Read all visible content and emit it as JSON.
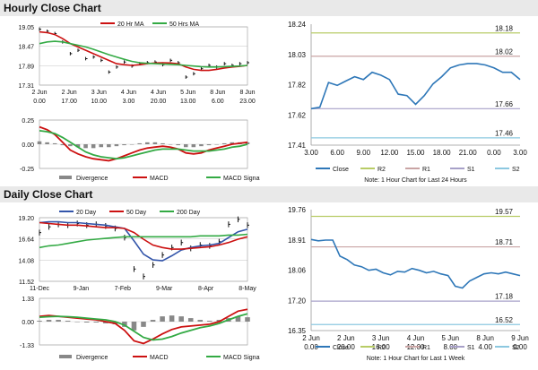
{
  "hourly": {
    "title": "Hourly Close Chart",
    "note": "Note: 1 Hour Chart for Last 24 Hours",
    "price_legend": [
      "20 Hr MA",
      "50 Hrs MA"
    ],
    "macd_legend": [
      "Divergence",
      "MACD",
      "MACD Signal Line"
    ],
    "pivot_legend": [
      "Close",
      "R2",
      "R1",
      "S1",
      "S2"
    ]
  },
  "daily": {
    "title": "Daily Close Chart",
    "note": "Note: 1 Hour Chart for Last 1 Week",
    "price_legend": [
      "20 Day",
      "50 Day",
      "200 Day"
    ],
    "macd_legend": [
      "Divergence",
      "MACD",
      "MACD Signal Line"
    ],
    "pivot_legend": [
      "Close",
      "R2",
      "R1",
      "S1",
      "S2"
    ]
  },
  "colors": {
    "price": "#111111",
    "ma_short": "#cc1111",
    "ma_mid": "#33aa44",
    "ma_long": "#3355aa",
    "close": "#2e77b8",
    "r2": "#b8cc66",
    "r1": "#c9a4a4",
    "s1": "#a7a0c8",
    "s2": "#8cc8e0",
    "divergence": "#888888",
    "grid": "#cfcfcf"
  },
  "chart_data": [
    {
      "id": "hourly_price",
      "type": "line",
      "title": "Hourly Close Chart",
      "ylim": [
        17.31,
        19.05
      ],
      "yticks": [
        "19.05",
        "18.47",
        "17.89",
        "17.31"
      ],
      "xticks": [
        "2 Jun\n0.00",
        "2 Jun\n17.00",
        "3 Jun\n10.00",
        "4 Jun\n3.00",
        "4 Jun\n20.00",
        "5 Jun\n13.00",
        "8 Jun\n6.00",
        "8 Jun\n23.00"
      ],
      "series": [
        {
          "name": "Close",
          "values": [
            18.98,
            18.92,
            18.85,
            18.6,
            18.25,
            18.35,
            18.1,
            18.15,
            18.05,
            17.7,
            17.85,
            18.0,
            17.88,
            17.95,
            17.98,
            18.0,
            17.92,
            18.05,
            17.98,
            17.55,
            17.65,
            17.8,
            17.9,
            17.85,
            17.95,
            17.9,
            17.95,
            17.98
          ]
        },
        {
          "name": "20 Hr MA",
          "values": [
            18.9,
            18.88,
            18.82,
            18.7,
            18.55,
            18.45,
            18.35,
            18.25,
            18.15,
            18.05,
            17.95,
            17.92,
            17.9,
            17.92,
            17.95,
            17.97,
            17.98,
            17.97,
            17.95,
            17.85,
            17.78,
            17.75,
            17.75,
            17.78,
            17.82,
            17.85,
            17.87,
            17.9
          ]
        },
        {
          "name": "50 Hrs MA",
          "values": [
            18.55,
            18.6,
            18.62,
            18.6,
            18.55,
            18.5,
            18.45,
            18.38,
            18.3,
            18.22,
            18.15,
            18.08,
            18.02,
            17.98,
            17.96,
            17.95,
            17.94,
            17.93,
            17.92,
            17.9,
            17.88,
            17.86,
            17.85,
            17.85,
            17.86,
            17.87,
            17.88,
            17.9
          ]
        }
      ]
    },
    {
      "id": "hourly_macd",
      "type": "line",
      "title": "Hourly MACD",
      "ylim": [
        -0.25,
        0.25
      ],
      "yticks": [
        "0.25",
        "0.00",
        "-0.25"
      ],
      "series": [
        {
          "name": "Divergence",
          "values": [
            0.03,
            0.02,
            0.01,
            -0.01,
            -0.02,
            -0.03,
            -0.04,
            -0.04,
            -0.03,
            -0.03,
            -0.02,
            -0.01,
            0.0,
            0.01,
            0.02,
            0.02,
            0.01,
            0.0,
            -0.01,
            -0.03,
            -0.03,
            -0.02,
            -0.01,
            0.0,
            0.01,
            0.02,
            0.02,
            0.02
          ]
        },
        {
          "name": "MACD",
          "values": [
            0.18,
            0.15,
            0.1,
            0.02,
            -0.06,
            -0.1,
            -0.13,
            -0.15,
            -0.16,
            -0.17,
            -0.15,
            -0.12,
            -0.09,
            -0.06,
            -0.04,
            -0.03,
            -0.02,
            -0.03,
            -0.05,
            -0.09,
            -0.1,
            -0.09,
            -0.06,
            -0.04,
            -0.02,
            0.0,
            0.01,
            0.02
          ]
        },
        {
          "name": "MACD Signal Line",
          "values": [
            0.14,
            0.13,
            0.11,
            0.07,
            0.02,
            -0.03,
            -0.08,
            -0.11,
            -0.13,
            -0.14,
            -0.15,
            -0.14,
            -0.12,
            -0.1,
            -0.08,
            -0.06,
            -0.05,
            -0.05,
            -0.05,
            -0.06,
            -0.07,
            -0.07,
            -0.07,
            -0.06,
            -0.05,
            -0.03,
            -0.02,
            0.0
          ]
        }
      ]
    },
    {
      "id": "hourly_pivot",
      "type": "line",
      "title": "Hourly Pivot",
      "ylim": [
        17.41,
        18.24
      ],
      "yticks": [
        "18.24",
        "18.03",
        "17.82",
        "17.62",
        "17.41"
      ],
      "xticks": [
        "3.00",
        "6.00",
        "9.00",
        "12.00",
        "15.00",
        "18.00",
        "21.00",
        "0.00",
        "3.00"
      ],
      "levels": [
        {
          "name": "R2",
          "value": 18.18,
          "label": "18.18"
        },
        {
          "name": "R1",
          "value": 18.02,
          "label": "18.02"
        },
        {
          "name": "S1",
          "value": 17.66,
          "label": "17.66"
        },
        {
          "name": "S2",
          "value": 17.46,
          "label": "17.46"
        }
      ],
      "series": [
        {
          "name": "Close",
          "values": [
            17.66,
            17.67,
            17.84,
            17.82,
            17.85,
            17.88,
            17.86,
            17.91,
            17.89,
            17.86,
            17.76,
            17.75,
            17.69,
            17.75,
            17.83,
            17.88,
            17.94,
            17.96,
            17.97,
            17.97,
            17.96,
            17.94,
            17.91,
            17.91,
            17.86
          ]
        }
      ]
    },
    {
      "id": "daily_price",
      "type": "line",
      "title": "Daily Close Chart",
      "ylim": [
        11.52,
        19.2
      ],
      "yticks": [
        "19.20",
        "16.64",
        "14.08",
        "11.52"
      ],
      "xticks": [
        "11-Dec",
        "9-Jan",
        "7-Feb",
        "9-Mar",
        "8-Apr",
        "8-May"
      ],
      "series": [
        {
          "name": "Close",
          "values": [
            17.4,
            18.1,
            18.4,
            18.3,
            18.5,
            18.3,
            18.4,
            18.2,
            17.9,
            16.8,
            13.0,
            12.1,
            13.5,
            14.7,
            15.6,
            16.2,
            15.5,
            15.9,
            15.8,
            16.3,
            18.4,
            19.0,
            18.3
          ]
        },
        {
          "name": "20 Day",
          "values": [
            18.6,
            18.7,
            18.7,
            18.6,
            18.6,
            18.5,
            18.4,
            18.3,
            18.1,
            17.9,
            16.4,
            14.8,
            14.1,
            14.0,
            14.6,
            15.3,
            15.6,
            15.8,
            15.9,
            16.1,
            16.8,
            17.5,
            17.8
          ]
        },
        {
          "name": "50 Day",
          "values": [
            18.6,
            18.5,
            18.4,
            18.3,
            18.3,
            18.2,
            18.1,
            18.0,
            18.0,
            17.9,
            17.4,
            16.6,
            15.9,
            15.6,
            15.4,
            15.4,
            15.5,
            15.6,
            15.7,
            15.9,
            16.2,
            16.6,
            16.9
          ]
        },
        {
          "name": "200 Day",
          "values": [
            15.6,
            15.8,
            15.9,
            16.1,
            16.3,
            16.5,
            16.6,
            16.7,
            16.8,
            16.9,
            16.9,
            16.9,
            16.9,
            16.9,
            16.9,
            16.9,
            16.9,
            17.0,
            17.0,
            17.0,
            17.1,
            17.1,
            17.2
          ]
        }
      ]
    },
    {
      "id": "daily_macd",
      "type": "line",
      "title": "Daily MACD",
      "ylim": [
        -1.33,
        1.33
      ],
      "yticks": [
        "1.33",
        "0.00",
        "-1.33"
      ],
      "series": [
        {
          "name": "Divergence",
          "values": [
            0.05,
            0.1,
            0.1,
            0.05,
            0.0,
            -0.05,
            -0.05,
            -0.1,
            -0.15,
            -0.3,
            -0.5,
            -0.3,
            0.1,
            0.3,
            0.35,
            0.3,
            0.2,
            0.1,
            0.05,
            0.1,
            0.2,
            0.3,
            0.25
          ]
        },
        {
          "name": "MACD",
          "values": [
            0.3,
            0.35,
            0.3,
            0.25,
            0.2,
            0.15,
            0.1,
            0.0,
            -0.1,
            -0.5,
            -1.1,
            -1.25,
            -1.0,
            -0.7,
            -0.45,
            -0.3,
            -0.25,
            -0.2,
            -0.15,
            0.0,
            0.3,
            0.6,
            0.7
          ]
        },
        {
          "name": "MACD Signal Line",
          "values": [
            0.25,
            0.28,
            0.3,
            0.28,
            0.25,
            0.2,
            0.15,
            0.1,
            0.0,
            -0.2,
            -0.55,
            -0.9,
            -1.05,
            -1.0,
            -0.85,
            -0.65,
            -0.5,
            -0.35,
            -0.25,
            -0.1,
            0.1,
            0.3,
            0.45
          ]
        }
      ]
    },
    {
      "id": "daily_pivot",
      "type": "line",
      "title": "Daily Pivot",
      "ylim": [
        16.35,
        19.76
      ],
      "yticks": [
        "19.76",
        "18.91",
        "18.06",
        "17.20",
        "16.35"
      ],
      "xticks": [
        "2 Jun\n0.00",
        "2 Jun\n20.00",
        "3 Jun\n16.00",
        "4 Jun\n12.00",
        "5 Jun\n8.00",
        "8 Jun\n4.00",
        "9 Jun\n0.00"
      ],
      "levels": [
        {
          "name": "R2",
          "value": 19.57,
          "label": "19.57"
        },
        {
          "name": "R1",
          "value": 18.71,
          "label": "18.71"
        },
        {
          "name": "S1",
          "value": 17.18,
          "label": "17.18"
        },
        {
          "name": "S2",
          "value": 16.52,
          "label": "16.52"
        }
      ],
      "series": [
        {
          "name": "Close",
          "values": [
            18.92,
            18.88,
            18.9,
            18.9,
            18.45,
            18.35,
            18.2,
            18.15,
            18.05,
            18.08,
            17.98,
            17.92,
            18.02,
            18.0,
            18.1,
            18.05,
            17.98,
            18.02,
            17.95,
            17.9,
            17.6,
            17.55,
            17.75,
            17.85,
            17.95,
            17.98,
            17.95,
            18.0,
            17.95,
            17.9
          ]
        }
      ]
    }
  ]
}
